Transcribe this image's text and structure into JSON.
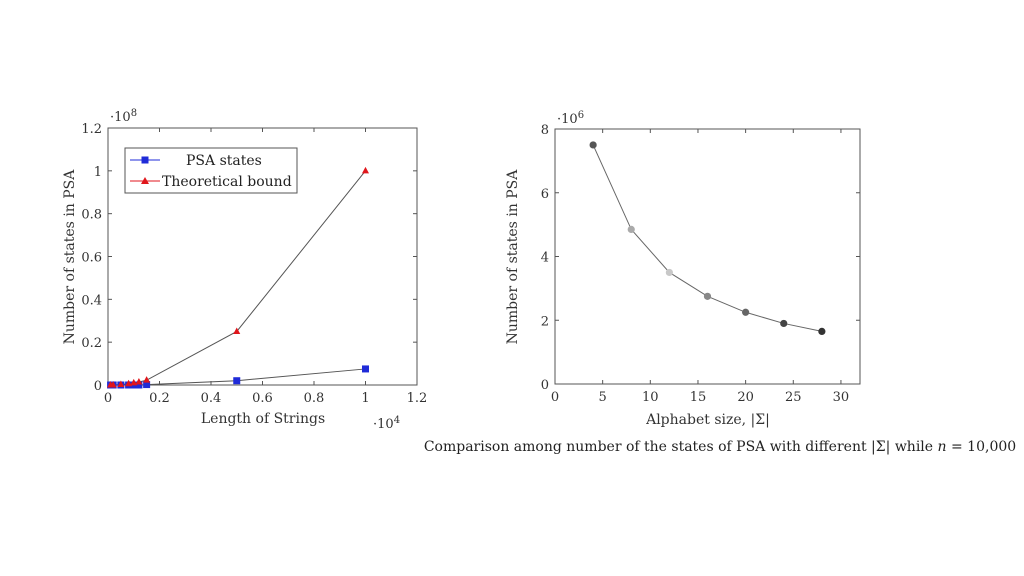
{
  "chart_data": [
    {
      "type": "line",
      "xlabel": "Length of Strings",
      "ylabel": "Number of states in PSA",
      "x_multiplier": "·10^4",
      "y_multiplier": "·10^8",
      "xlim": [
        0,
        1.2
      ],
      "ylim": [
        0,
        1.2
      ],
      "x_ticks": [
        0,
        0.2,
        0.4,
        0.6,
        0.8,
        1,
        1.2
      ],
      "x_tick_labels": [
        "0",
        "0.2",
        "0.4",
        "0.6",
        "0.8",
        "1",
        "1.2"
      ],
      "y_ticks": [
        0,
        0.2,
        0.4,
        0.6,
        0.8,
        1,
        1.2
      ],
      "y_tick_labels": [
        "0",
        "0.2",
        "0.4",
        "0.6",
        "0.8",
        "1",
        "1.2"
      ],
      "legend_position": "top-left",
      "grid": false,
      "series": [
        {
          "name": "PSA states",
          "color": "#1f2bd8",
          "marker": "square",
          "x": [
            0.01,
            0.02,
            0.05,
            0.08,
            0.1,
            0.12,
            0.15,
            0.5,
            1.0
          ],
          "y": [
            0,
            0,
            0,
            0,
            0,
            0,
            0.002,
            0.02,
            0.075
          ]
        },
        {
          "name": "Theoretical bound",
          "color": "#e0161c",
          "marker": "triangle",
          "x": [
            0.01,
            0.02,
            0.05,
            0.08,
            0.1,
            0.12,
            0.15,
            0.5,
            1.0
          ],
          "y": [
            0,
            0,
            0.0025,
            0.006,
            0.01,
            0.014,
            0.0225,
            0.25,
            1.0
          ]
        }
      ]
    },
    {
      "type": "line",
      "xlabel": "Alphabet size, |Σ|",
      "ylabel": "Number of states in PSA",
      "y_multiplier": "·10^6",
      "xlim": [
        0,
        32
      ],
      "ylim": [
        0,
        8
      ],
      "x_ticks": [
        0,
        5,
        10,
        15,
        20,
        25,
        30
      ],
      "x_tick_labels": [
        "0",
        "5",
        "10",
        "15",
        "20",
        "25",
        "30"
      ],
      "y_ticks": [
        0,
        2,
        4,
        6,
        8
      ],
      "y_tick_labels": [
        "0",
        "2",
        "4",
        "6",
        "8"
      ],
      "grid": false,
      "series": [
        {
          "x": [
            4,
            8,
            12,
            16,
            20,
            24,
            28
          ],
          "y": [
            7.5,
            4.85,
            3.5,
            2.75,
            2.25,
            1.9,
            1.65
          ],
          "point_colors": [
            "#555555",
            "#aaaaaa",
            "#c8c8c8",
            "#888888",
            "#666666",
            "#444444",
            "#333333"
          ]
        }
      ]
    }
  ],
  "caption": {
    "prefix": "Comparison among number of the states of PSA with different |Σ| while ",
    "n_symbol": "n",
    "suffix": " = 10,000"
  }
}
